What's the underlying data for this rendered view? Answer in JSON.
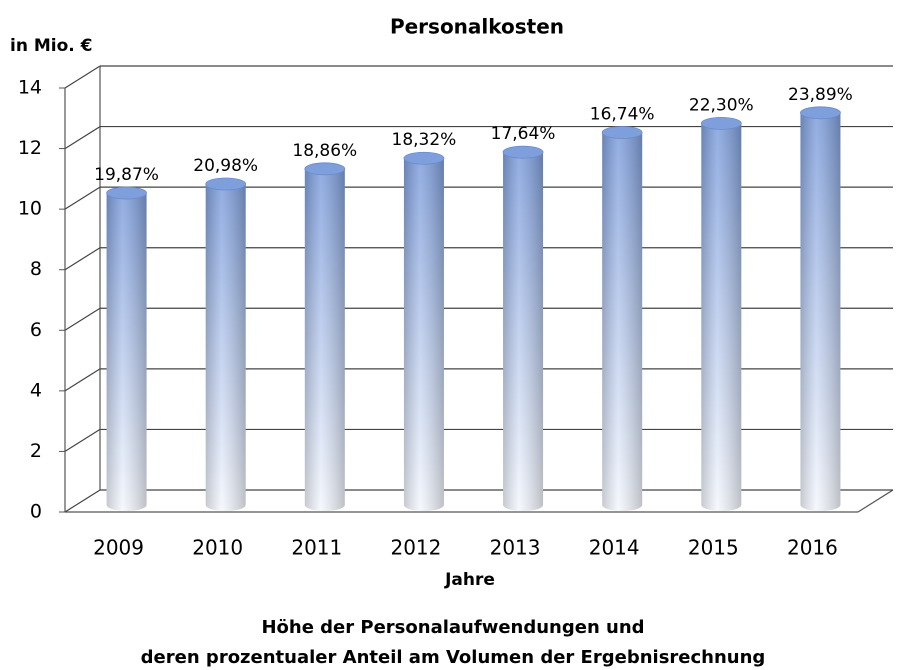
{
  "chart_data": {
    "type": "bar",
    "title": "Personalkosten",
    "y_axis_label": "in Mio. €",
    "x_axis_label": "Jahre",
    "caption": [
      "Höhe der Personalaufwendungen und",
      "deren prozentualer Anteil am Volumen der Ergebnisrechnung"
    ],
    "categories": [
      "2009",
      "2010",
      "2011",
      "2012",
      "2013",
      "2014",
      "2015",
      "2016"
    ],
    "values": [
      10.3,
      10.6,
      11.1,
      11.45,
      11.65,
      12.3,
      12.6,
      12.95
    ],
    "annotations": [
      "19,87%",
      "20,98%",
      "18,86%",
      "18,32%",
      "17,64%",
      "16,74%",
      "22,30%",
      "23,89%"
    ],
    "color": "#7f9fdc",
    "ylim": [
      0,
      14
    ],
    "yticks": [
      0,
      2,
      4,
      6,
      8,
      10,
      12,
      14
    ],
    "grid": true
  }
}
